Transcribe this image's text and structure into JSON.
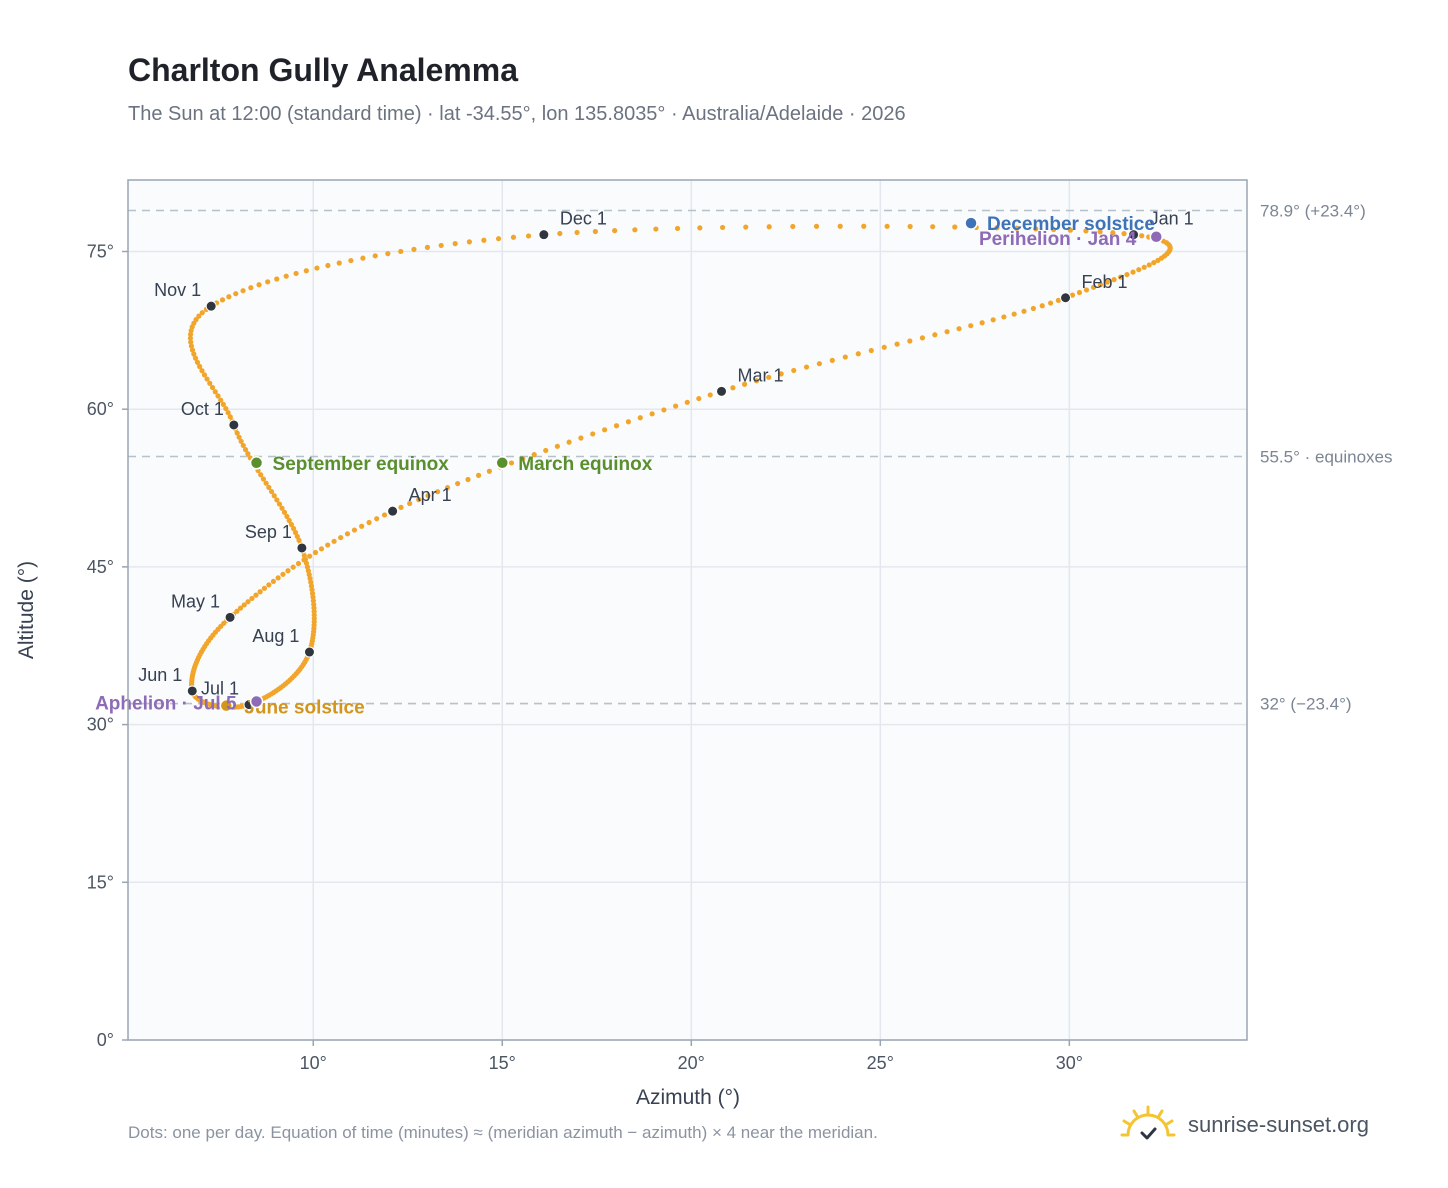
{
  "header": {
    "title": "Charlton Gully Analemma",
    "subtitle": "The Sun at 12:00 (standard time) · lat -34.55°, lon 135.8035° · Australia/Adelaide · 2026"
  },
  "footnote": "Dots: one per day. Equation of time (minutes) ≈ (meridian azimuth − azimuth) × 4 near the meridian.",
  "brand": {
    "name": "sunrise-sunset.org",
    "icon": "sun-logo-icon",
    "color": "#f4c431"
  },
  "colors": {
    "curve": "#f2a52b",
    "month_dot": "#2f3640",
    "equinox": "#5a8f2e",
    "june_solstice": "#d4951c",
    "december_solstice": "#3f73b8",
    "apsis": "#8e6bb6",
    "plot_bg": "#f9fbfd",
    "grid": "#e4e8ee",
    "reference_line": "#b7c1cc",
    "axis_text": "#4b5563"
  },
  "chart_data": {
    "type": "scatter",
    "xlabel": "Azimuth (°)",
    "ylabel": "Altitude (°)",
    "xlim": [
      5.1,
      34.7
    ],
    "ylim": [
      0,
      81.8
    ],
    "x_ticks": [
      {
        "value": 10,
        "label": "10°"
      },
      {
        "value": 15,
        "label": "15°"
      },
      {
        "value": 20,
        "label": "20°"
      },
      {
        "value": 25,
        "label": "25°"
      },
      {
        "value": 30,
        "label": "30°"
      }
    ],
    "y_ticks": [
      {
        "value": 0,
        "label": "0°"
      },
      {
        "value": 15,
        "label": "15°"
      },
      {
        "value": 30,
        "label": "30°"
      },
      {
        "value": 45,
        "label": "45°"
      },
      {
        "value": 60,
        "label": "60°"
      },
      {
        "value": 75,
        "label": "75°"
      }
    ],
    "grid": true,
    "reference_lines": [
      {
        "y": 78.9,
        "label": "78.9° (+23.4°)"
      },
      {
        "y": 55.5,
        "label": "55.5° · equinoxes"
      },
      {
        "y": 32.0,
        "label": "32° (−23.4°)"
      }
    ],
    "monthly_points": [
      {
        "label": "Jan 1",
        "x": 31.7,
        "y": 76.6
      },
      {
        "label": "Feb 1",
        "x": 29.9,
        "y": 70.6
      },
      {
        "label": "Mar 1",
        "x": 20.8,
        "y": 61.7
      },
      {
        "label": "Apr 1",
        "x": 12.1,
        "y": 50.3
      },
      {
        "label": "May 1",
        "x": 7.8,
        "y": 40.2
      },
      {
        "label": "Jun 1",
        "x": 6.8,
        "y": 33.2
      },
      {
        "label": "Jul 1",
        "x": 8.3,
        "y": 31.9
      },
      {
        "label": "Aug 1",
        "x": 9.9,
        "y": 36.9
      },
      {
        "label": "Sep 1",
        "x": 9.7,
        "y": 46.8
      },
      {
        "label": "Oct 1",
        "x": 7.9,
        "y": 58.5
      },
      {
        "label": "Nov 1",
        "x": 7.3,
        "y": 69.8
      },
      {
        "label": "Dec 1",
        "x": 16.1,
        "y": 76.6
      }
    ],
    "events": [
      {
        "label": "March equinox",
        "x": 15.0,
        "y": 54.9,
        "color": "#5a8f2e"
      },
      {
        "label": "September equinox",
        "x": 8.5,
        "y": 54.9,
        "color": "#5a8f2e"
      },
      {
        "label": "June solstice",
        "x": 7.7,
        "y": 31.8,
        "color": "#d4951c"
      },
      {
        "label": "December solstice",
        "x": 27.4,
        "y": 77.7,
        "color": "#3f73b8"
      },
      {
        "label": "Perihelion · Jan 4",
        "x": 32.3,
        "y": 76.4,
        "color": "#8e6bb6"
      },
      {
        "label": "Aphelion · Jul 5",
        "x": 8.5,
        "y": 32.2,
        "color": "#8e6bb6"
      }
    ]
  }
}
